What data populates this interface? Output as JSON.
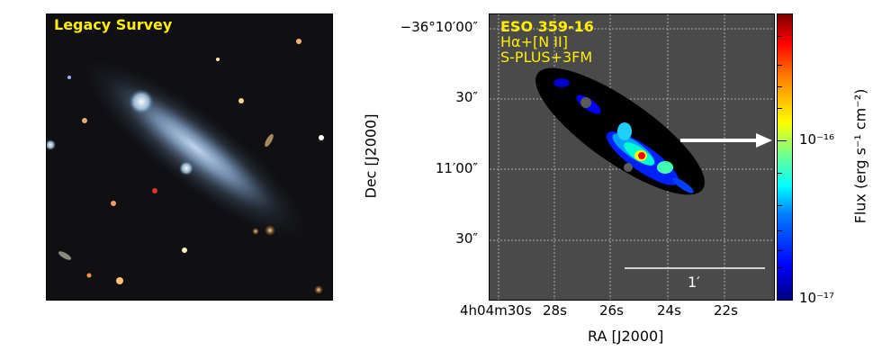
{
  "left_panel": {
    "title": "Legacy Survey"
  },
  "right_panel": {
    "overlay": {
      "object_name": "ESO 359-16",
      "filter_label": "Hα+[N II]",
      "survey_label": "S-PLUS+3FM"
    },
    "dec_ticks": [
      "−36°10′00″",
      "30″",
      "11′00″",
      "30″"
    ],
    "ra_ticks": [
      "4h04m30s",
      "28s",
      "26s",
      "24s",
      "22s"
    ],
    "ylabel": "Dec [J2000]",
    "xlabel": "RA [J2000]",
    "scale_bar_label": "1′"
  },
  "colorbar": {
    "label": "Flux (erg s⁻¹ cm⁻²)",
    "ticks": [
      "10⁻¹⁶",
      "10⁻¹⁷"
    ],
    "colors": [
      "#00007f",
      "#0000ff",
      "#00ffff",
      "#ffff00",
      "#ff0000",
      "#7f0000"
    ]
  }
}
